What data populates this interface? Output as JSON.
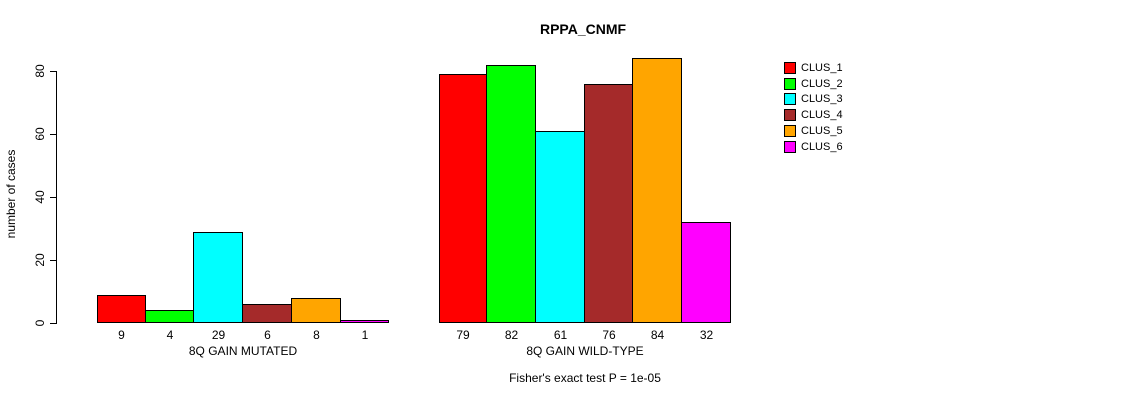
{
  "chart_data": {
    "type": "bar",
    "title": "RPPA_CNMF",
    "ylabel": "number of cases",
    "xlabel": "",
    "ylim": [
      0,
      80
    ],
    "yticks": [
      0,
      20,
      40,
      60,
      80
    ],
    "grid": false,
    "legend_position": "right",
    "legend": [
      {
        "label": "CLUS_1",
        "color": "#ff0000"
      },
      {
        "label": "CLUS_2",
        "color": "#00ff00"
      },
      {
        "label": "CLUS_3",
        "color": "#00ffff"
      },
      {
        "label": "CLUS_4",
        "color": "#a52a2a"
      },
      {
        "label": "CLUS_5",
        "color": "#ffa500"
      },
      {
        "label": "CLUS_6",
        "color": "#ff00ff"
      }
    ],
    "groups": [
      {
        "label": "8Q GAIN MUTATED",
        "values": [
          9,
          4,
          29,
          6,
          8,
          1
        ]
      },
      {
        "label": "8Q GAIN WILD-TYPE",
        "values": [
          79,
          82,
          61,
          76,
          84,
          32
        ]
      }
    ],
    "footnote": "Fisher's exact test P = 1e-05"
  }
}
